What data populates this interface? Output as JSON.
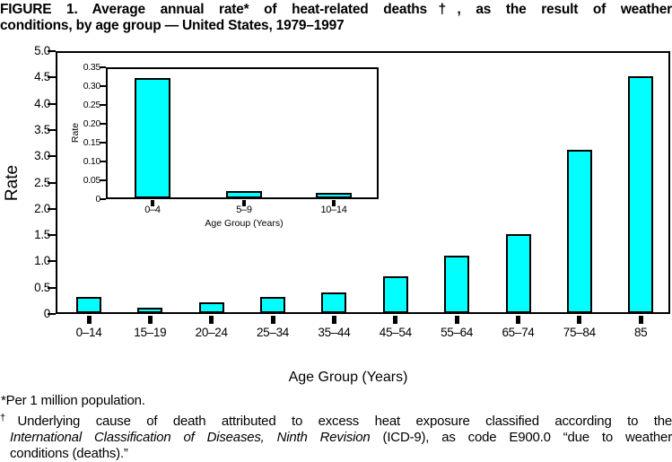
{
  "figure_title": {
    "line1": "FIGURE 1. Average annual rate* of heat-related deaths†, as the result of weather",
    "line2": "conditions, by age group — United States, 1979–1997"
  },
  "chart_data": [
    {
      "id": "main-bar-chart",
      "type": "bar",
      "categories": [
        "0–14",
        "15–19",
        "20–24",
        "25–34",
        "35–44",
        "45–54",
        "55–64",
        "65–74",
        "75–84",
        "85"
      ],
      "values": [
        0.3,
        0.1,
        0.2,
        0.3,
        0.4,
        0.7,
        1.1,
        1.5,
        3.1,
        4.5
      ],
      "xlabel": "Age Group (Years)",
      "ylabel": "Rate",
      "ylim": [
        0,
        5.0
      ],
      "ytick_step": 0.5,
      "ytick_labels": [
        "0",
        "0.5",
        "1.0",
        "1.5",
        "2.0",
        "2.5",
        "3.0",
        "3.5",
        "4.0",
        "4.5",
        "5.0"
      ],
      "grid": false,
      "legend": null,
      "bar_color": "#00ffff",
      "bar_border_color": "#000000"
    },
    {
      "id": "inset-bar-chart",
      "type": "bar",
      "categories": [
        "0–4",
        "5–9",
        "10–14"
      ],
      "values": [
        0.32,
        0.02,
        0.015
      ],
      "xlabel": "Age Group (Years)",
      "ylabel": "Rate",
      "ylim": [
        0,
        0.35
      ],
      "ytick_step": 0.05,
      "ytick_labels": [
        "0",
        "0.05",
        "0.10",
        "0.15",
        "0.20",
        "0.25",
        "0.30",
        "0.35"
      ],
      "grid": false,
      "legend": null,
      "bar_color": "#00ffff",
      "bar_border_color": "#000000"
    }
  ],
  "footnotes": {
    "per_million": "*Per 1 million population.",
    "dagger": {
      "marker": "†",
      "line1": "Underlying cause of death attributed to excess heat exposure classified according to the",
      "line2_italic": "International Classification of Diseases, Ninth Revision",
      "line2_rest": " (ICD-9), as code E900.0 “due to weather",
      "line3": "conditions (deaths).”"
    }
  }
}
